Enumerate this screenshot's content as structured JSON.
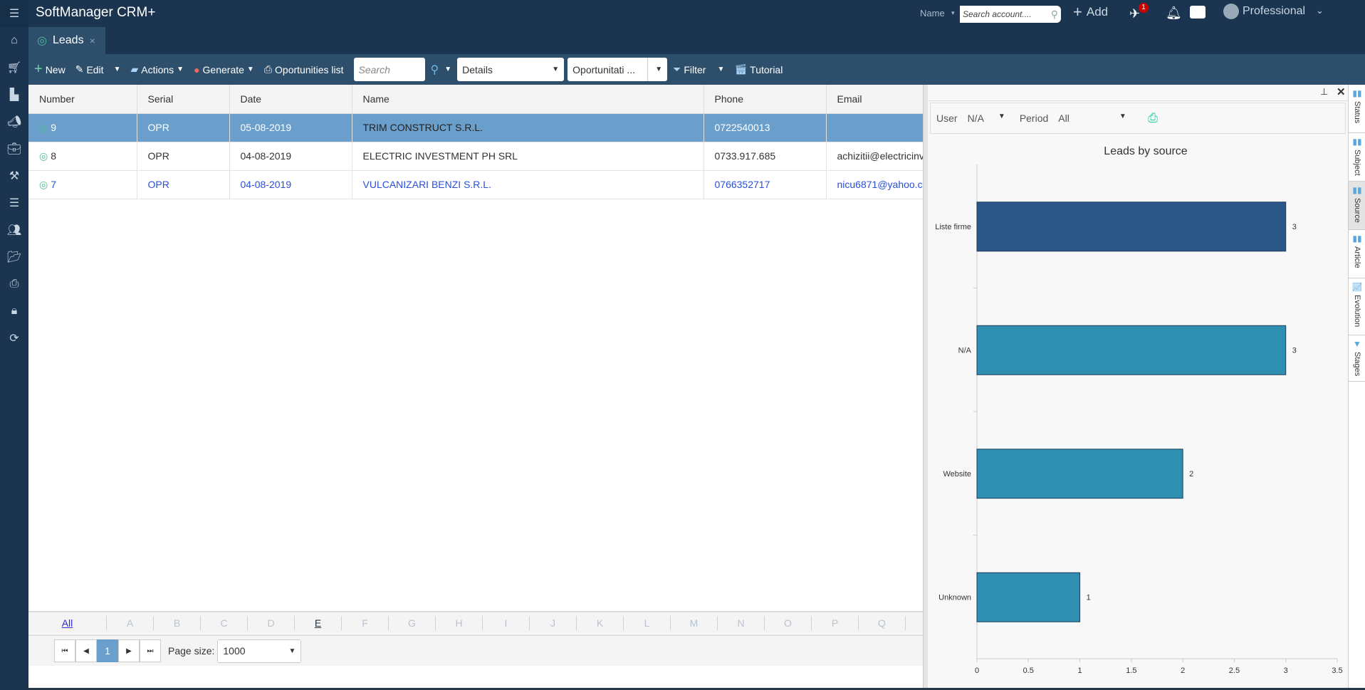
{
  "app": {
    "title": "SoftManager CRM+"
  },
  "topbar": {
    "search_mode": "Name",
    "search_placeholder": "Search account....",
    "add_label": "Add",
    "notif_badge": "1",
    "user": "Professional",
    "help": "?"
  },
  "sidebar": {
    "items": [
      "home-icon",
      "cart-icon",
      "chart-icon",
      "megaphone-icon",
      "briefcase-icon",
      "hammer-icon",
      "database-icon",
      "users-icon",
      "folder-icon",
      "print-icon",
      "lock-icon",
      "refresh-icon"
    ]
  },
  "tabs": [
    {
      "label": "Leads",
      "close": "×"
    }
  ],
  "toolbar": {
    "new": "New",
    "edit": "Edit",
    "actions": "Actions",
    "generate": "Generate",
    "oportunities": "Oportunities list",
    "search_placeholder": "Search",
    "view": "Details",
    "filter_select": "Oportunitati ...",
    "filter": "Filter",
    "tutorial": "Tutorial"
  },
  "table": {
    "columns": [
      "Number",
      "Serial",
      "Date",
      "Name",
      "Phone",
      "Email"
    ],
    "rows": [
      {
        "number": "9",
        "serial": "OPR",
        "date": "05-08-2019",
        "name": "TRIM CONSTRUCT S.R.L.",
        "phone": "0722540013",
        "email": ""
      },
      {
        "number": "8",
        "serial": "OPR",
        "date": "04-08-2019",
        "name": "ELECTRIC INVESTMENT PH SRL",
        "phone": "0733.917.685",
        "email": "achizitii@electricinv"
      },
      {
        "number": "7",
        "serial": "OPR",
        "date": "04-08-2019",
        "name": "VULCANIZARI BENZI S.R.L.",
        "phone": "0766352717",
        "email": "nicu6871@yahoo.c"
      }
    ]
  },
  "alphabet": [
    "All",
    "A",
    "B",
    "C",
    "D",
    "E",
    "F",
    "G",
    "H",
    "I",
    "J",
    "K",
    "L",
    "M",
    "N",
    "O",
    "P",
    "Q"
  ],
  "pager": {
    "current": "1",
    "page_size_label": "Page size:",
    "page_size": "1000"
  },
  "panel": {
    "user_label": "User",
    "user_value": "N/A",
    "period_label": "Period",
    "period_value": "All",
    "vtabs": [
      "Status",
      "Subject",
      "Source",
      "Article",
      "Evolution",
      "Stages"
    ],
    "active_vtab": "Source"
  },
  "chart_data": {
    "type": "bar",
    "orientation": "horizontal",
    "title": "Leads by source",
    "categories": [
      "Liste firme",
      "N/A",
      "Website",
      "Unknown"
    ],
    "values": [
      3,
      3,
      2,
      1
    ],
    "xlim": [
      0,
      3.5
    ],
    "xticks": [
      "0",
      "0.5",
      "1",
      "1.5",
      "2",
      "2.5",
      "3",
      "3.5"
    ],
    "colors": [
      "#2a5788",
      "#2f8fb0",
      "#2f8fb0",
      "#2f8fb0"
    ],
    "grid": false
  }
}
